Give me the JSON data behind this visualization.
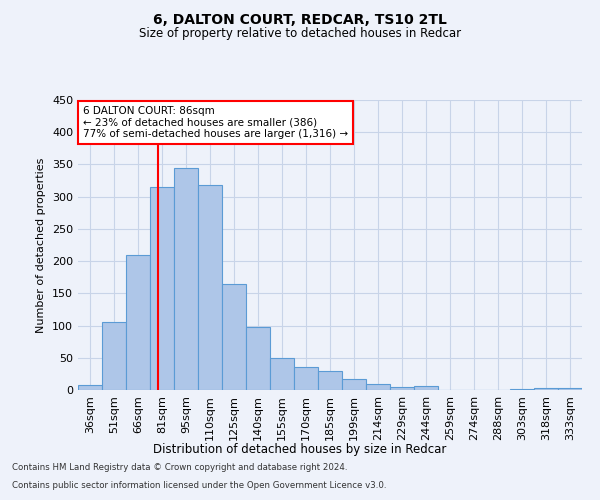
{
  "title": "6, DALTON COURT, REDCAR, TS10 2TL",
  "subtitle": "Size of property relative to detached houses in Redcar",
  "xlabel": "Distribution of detached houses by size in Redcar",
  "ylabel": "Number of detached properties",
  "categories": [
    "36sqm",
    "51sqm",
    "66sqm",
    "81sqm",
    "95sqm",
    "110sqm",
    "125sqm",
    "140sqm",
    "155sqm",
    "170sqm",
    "185sqm",
    "199sqm",
    "214sqm",
    "229sqm",
    "244sqm",
    "259sqm",
    "274sqm",
    "288sqm",
    "303sqm",
    "318sqm",
    "333sqm"
  ],
  "values": [
    7,
    105,
    210,
    315,
    345,
    318,
    165,
    98,
    50,
    35,
    30,
    17,
    9,
    5,
    6,
    0,
    0,
    0,
    2,
    3,
    3
  ],
  "bar_color": "#aec6e8",
  "bar_edge_color": "#5b9bd5",
  "bar_edge_width": 0.8,
  "grid_color": "#c8d4e8",
  "background_color": "#eef2fa",
  "vline_color": "red",
  "vline_pos": 3.333,
  "annotation_box_text": "6 DALTON COURT: 86sqm\n← 23% of detached houses are smaller (386)\n77% of semi-detached houses are larger (1,316) →",
  "ylim": [
    0,
    450
  ],
  "yticks": [
    0,
    50,
    100,
    150,
    200,
    250,
    300,
    350,
    400,
    450
  ],
  "footer_line1": "Contains HM Land Registry data © Crown copyright and database right 2024.",
  "footer_line2": "Contains public sector information licensed under the Open Government Licence v3.0."
}
